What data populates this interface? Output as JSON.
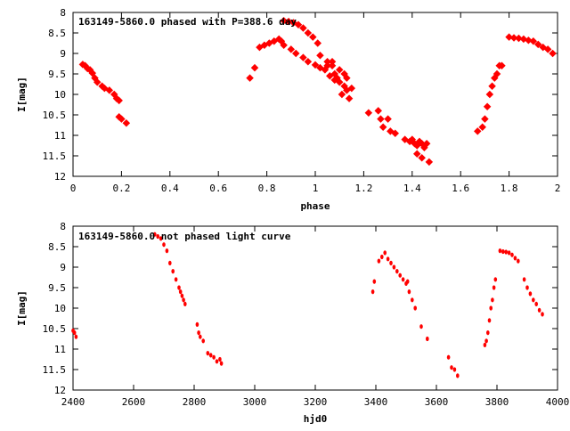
{
  "chart_data": [
    {
      "type": "scatter",
      "title": "163149-5860.0 phased with P=388.6 day",
      "xlabel": "phase",
      "ylabel": "I[mag]",
      "xlim": [
        0,
        2
      ],
      "ylim": [
        8,
        12
      ],
      "y_inverted": true,
      "xticks": [
        0,
        0.2,
        0.4,
        0.6,
        0.8,
        1,
        1.2,
        1.4,
        1.6,
        1.8,
        2
      ],
      "yticks": [
        8,
        8.5,
        9,
        9.5,
        10,
        10.5,
        11,
        11.5,
        12
      ],
      "xtick_labels": [
        "0",
        "0.2",
        "0.4",
        "0.6",
        "0.8",
        "1",
        "1.2",
        "1.4",
        "1.6",
        "1.8",
        "2"
      ],
      "ytick_labels": [
        "8",
        "8.5",
        "9",
        "9.5",
        "10",
        "10.5",
        "11",
        "11.5",
        "12"
      ],
      "marker_color": "#ff0000",
      "points": [
        [
          0.04,
          9.27
        ],
        [
          0.05,
          9.3
        ],
        [
          0.06,
          9.37
        ],
        [
          0.07,
          9.4
        ],
        [
          0.08,
          9.48
        ],
        [
          0.09,
          9.6
        ],
        [
          0.1,
          9.7
        ],
        [
          0.12,
          9.8
        ],
        [
          0.13,
          9.85
        ],
        [
          0.15,
          9.9
        ],
        [
          0.17,
          10.0
        ],
        [
          0.18,
          10.1
        ],
        [
          0.19,
          10.15
        ],
        [
          0.19,
          10.55
        ],
        [
          0.2,
          10.6
        ],
        [
          0.22,
          10.7
        ],
        [
          0.73,
          9.6
        ],
        [
          0.75,
          9.35
        ],
        [
          0.77,
          8.85
        ],
        [
          0.79,
          8.8
        ],
        [
          0.81,
          8.75
        ],
        [
          0.83,
          8.7
        ],
        [
          0.85,
          8.65
        ],
        [
          0.86,
          8.7
        ],
        [
          0.87,
          8.2
        ],
        [
          0.89,
          8.22
        ],
        [
          0.91,
          8.25
        ],
        [
          0.93,
          8.3
        ],
        [
          0.95,
          8.38
        ],
        [
          0.97,
          8.5
        ],
        [
          0.99,
          8.6
        ],
        [
          1.01,
          8.75
        ],
        [
          0.87,
          8.8
        ],
        [
          0.9,
          8.9
        ],
        [
          0.92,
          9.0
        ],
        [
          0.95,
          9.1
        ],
        [
          0.97,
          9.2
        ],
        [
          1.0,
          9.28
        ],
        [
          1.02,
          9.35
        ],
        [
          1.04,
          9.4
        ],
        [
          1.05,
          9.3
        ],
        [
          1.07,
          9.2
        ],
        [
          1.02,
          9.05
        ],
        [
          1.05,
          9.2
        ],
        [
          1.07,
          9.3
        ],
        [
          1.08,
          9.5
        ],
        [
          1.09,
          9.6
        ],
        [
          1.1,
          9.7
        ],
        [
          1.12,
          9.8
        ],
        [
          1.13,
          9.9
        ],
        [
          1.14,
          10.1
        ],
        [
          1.15,
          9.85
        ],
        [
          1.06,
          9.55
        ],
        [
          1.08,
          9.65
        ],
        [
          1.1,
          9.4
        ],
        [
          1.12,
          9.5
        ],
        [
          1.13,
          9.6
        ],
        [
          1.11,
          10.0
        ],
        [
          1.22,
          10.45
        ],
        [
          1.26,
          10.4
        ],
        [
          1.27,
          10.6
        ],
        [
          1.28,
          10.8
        ],
        [
          1.3,
          10.6
        ],
        [
          1.31,
          10.9
        ],
        [
          1.33,
          10.95
        ],
        [
          1.37,
          11.1
        ],
        [
          1.39,
          11.15
        ],
        [
          1.4,
          11.1
        ],
        [
          1.41,
          11.2
        ],
        [
          1.42,
          11.25
        ],
        [
          1.43,
          11.15
        ],
        [
          1.44,
          11.2
        ],
        [
          1.45,
          11.3
        ],
        [
          1.42,
          11.45
        ],
        [
          1.44,
          11.55
        ],
        [
          1.46,
          11.2
        ],
        [
          1.47,
          11.65
        ],
        [
          1.67,
          10.9
        ],
        [
          1.69,
          10.8
        ],
        [
          1.7,
          10.6
        ],
        [
          1.71,
          10.3
        ],
        [
          1.72,
          10.0
        ],
        [
          1.73,
          9.8
        ],
        [
          1.74,
          9.6
        ],
        [
          1.75,
          9.5
        ],
        [
          1.76,
          9.3
        ],
        [
          1.77,
          9.3
        ],
        [
          1.8,
          8.6
        ],
        [
          1.82,
          8.62
        ],
        [
          1.84,
          8.63
        ],
        [
          1.86,
          8.65
        ],
        [
          1.88,
          8.68
        ],
        [
          1.9,
          8.7
        ],
        [
          1.92,
          8.78
        ],
        [
          1.94,
          8.85
        ],
        [
          1.96,
          8.9
        ],
        [
          1.98,
          9.0
        ]
      ]
    },
    {
      "type": "scatter",
      "title": "163149-5860.0 not phased light curve",
      "xlabel": "hjd0",
      "ylabel": "I[mag]",
      "xlim": [
        2400,
        4000
      ],
      "ylim": [
        8,
        12
      ],
      "y_inverted": true,
      "xticks": [
        2400,
        2600,
        2800,
        3000,
        3200,
        3400,
        3600,
        3800,
        4000
      ],
      "yticks": [
        8,
        8.5,
        9,
        9.5,
        10,
        10.5,
        11,
        11.5,
        12
      ],
      "xtick_labels": [
        "2400",
        "2600",
        "2800",
        "3000",
        "3200",
        "3400",
        "3600",
        "3800",
        "4000"
      ],
      "ytick_labels": [
        "8",
        "8.5",
        "9",
        "9.5",
        "10",
        "10.5",
        "11",
        "11.5",
        "12"
      ],
      "marker_color": "#ff0000",
      "points": [
        [
          2400,
          10.55
        ],
        [
          2405,
          10.6
        ],
        [
          2410,
          10.7
        ],
        [
          2670,
          8.2
        ],
        [
          2680,
          8.25
        ],
        [
          2690,
          8.3
        ],
        [
          2700,
          8.45
        ],
        [
          2710,
          8.6
        ],
        [
          2720,
          8.9
        ],
        [
          2730,
          9.1
        ],
        [
          2740,
          9.3
        ],
        [
          2750,
          9.5
        ],
        [
          2755,
          9.6
        ],
        [
          2760,
          9.7
        ],
        [
          2765,
          9.8
        ],
        [
          2770,
          9.9
        ],
        [
          2810,
          10.4
        ],
        [
          2815,
          10.6
        ],
        [
          2820,
          10.7
        ],
        [
          2830,
          10.8
        ],
        [
          2845,
          11.1
        ],
        [
          2855,
          11.15
        ],
        [
          2865,
          11.2
        ],
        [
          2875,
          11.3
        ],
        [
          2885,
          11.25
        ],
        [
          2890,
          11.35
        ],
        [
          3390,
          9.6
        ],
        [
          3395,
          9.35
        ],
        [
          3410,
          8.85
        ],
        [
          3420,
          8.75
        ],
        [
          3430,
          8.65
        ],
        [
          3440,
          8.8
        ],
        [
          3450,
          8.9
        ],
        [
          3460,
          9.0
        ],
        [
          3470,
          9.1
        ],
        [
          3480,
          9.2
        ],
        [
          3490,
          9.3
        ],
        [
          3500,
          9.4
        ],
        [
          3505,
          9.35
        ],
        [
          3510,
          9.6
        ],
        [
          3520,
          9.8
        ],
        [
          3530,
          10.0
        ],
        [
          3550,
          10.45
        ],
        [
          3570,
          10.75
        ],
        [
          3640,
          11.2
        ],
        [
          3650,
          11.45
        ],
        [
          3660,
          11.5
        ],
        [
          3670,
          11.65
        ],
        [
          3760,
          10.9
        ],
        [
          3765,
          10.8
        ],
        [
          3770,
          10.6
        ],
        [
          3775,
          10.3
        ],
        [
          3780,
          10.0
        ],
        [
          3785,
          9.8
        ],
        [
          3790,
          9.5
        ],
        [
          3795,
          9.3
        ],
        [
          3810,
          8.6
        ],
        [
          3820,
          8.62
        ],
        [
          3830,
          8.63
        ],
        [
          3840,
          8.65
        ],
        [
          3850,
          8.7
        ],
        [
          3860,
          8.78
        ],
        [
          3870,
          8.85
        ],
        [
          3890,
          9.3
        ],
        [
          3900,
          9.5
        ],
        [
          3910,
          9.65
        ],
        [
          3920,
          9.8
        ],
        [
          3930,
          9.9
        ],
        [
          3940,
          10.05
        ],
        [
          3950,
          10.15
        ]
      ]
    }
  ]
}
